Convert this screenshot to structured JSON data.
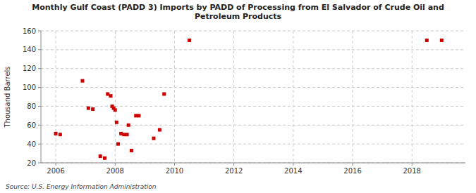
{
  "chart_data": {
    "type": "scatter",
    "title": "Monthly Gulf Coast (PADD 3) Imports by PADD of Processing from El Salvador of Crude Oil and\nPetroleum Products",
    "y_label": "Thousand Barrels",
    "annotations": [
      "Source: U.S. Energy Information Administration"
    ],
    "x": [
      2006.0,
      2006.15,
      2006.9,
      2007.1,
      2007.25,
      2007.5,
      2007.65,
      2007.75,
      2007.85,
      2007.9,
      2007.95,
      2008.0,
      2008.05,
      2008.1,
      2008.2,
      2008.3,
      2008.4,
      2008.45,
      2008.55,
      2008.7,
      2008.8,
      2009.3,
      2009.5,
      2009.65,
      2010.5,
      2018.5,
      2019.0
    ],
    "values": [
      51,
      50,
      107,
      78,
      77,
      27,
      25,
      93,
      91,
      80,
      78,
      76,
      63,
      40,
      51,
      50,
      50,
      60,
      33,
      70,
      70,
      46,
      55,
      93,
      150,
      150,
      150
    ],
    "color": "#cc0000",
    "marker": "square",
    "xlim": [
      2005.5,
      2019.8
    ],
    "ylim": [
      20,
      160
    ],
    "xticks": [
      2006,
      2008,
      2010,
      2012,
      2014,
      2016,
      2018
    ],
    "yticks": [
      20,
      40,
      60,
      80,
      100,
      120,
      140,
      160
    ],
    "grid": true
  }
}
